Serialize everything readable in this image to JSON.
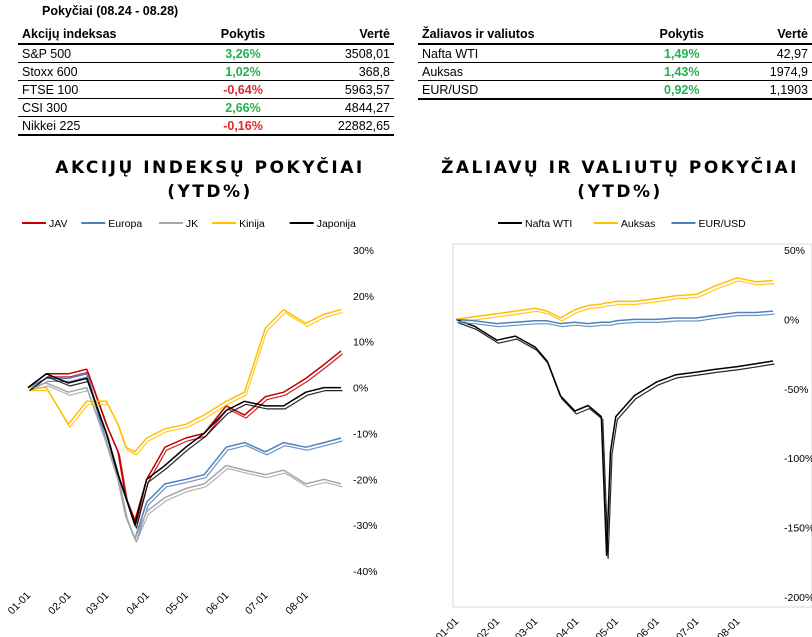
{
  "header": {
    "period_title": "Pokyčiai (08.24 - 08.28)"
  },
  "indices_table": {
    "headers": [
      "Akcijų indeksas",
      "Pokytis",
      "Vertė"
    ],
    "rows": [
      {
        "name": "S&P 500",
        "change": "3,26%",
        "value": "3508,01",
        "direction": "pos"
      },
      {
        "name": "Stoxx 600",
        "change": "1,02%",
        "value": "368,8",
        "direction": "pos"
      },
      {
        "name": "FTSE 100",
        "change": "-0,64%",
        "value": "5963,57",
        "direction": "neg"
      },
      {
        "name": "CSI 300",
        "change": "2,66%",
        "value": "4844,27",
        "direction": "pos"
      },
      {
        "name": "Nikkei 225",
        "change": "-0,16%",
        "value": "22882,65",
        "direction": "neg"
      }
    ]
  },
  "commodities_table": {
    "headers": [
      "Žaliavos ir valiutos",
      "Pokytis",
      "Vertė"
    ],
    "rows": [
      {
        "name": "Nafta WTI",
        "change": "1,49%",
        "value": "42,97",
        "direction": "pos"
      },
      {
        "name": "Auksas",
        "change": "1,43%",
        "value": "1974,9",
        "direction": "pos"
      },
      {
        "name": "EUR/USD",
        "change": "0,92%",
        "value": "1,1903",
        "direction": "pos"
      }
    ]
  },
  "colors": {
    "positive": "#21b24b",
    "negative": "#e3262b"
  },
  "chart_data": [
    {
      "type": "line",
      "title_lines": [
        "AKCIJŲ INDEKSŲ POKYČIAI",
        "(YTD%)"
      ],
      "x": [
        "01-01",
        "01-15",
        "02-01",
        "02-15",
        "03-01",
        "03-10",
        "03-16",
        "03-23",
        "04-01",
        "04-15",
        "05-01",
        "05-15",
        "06-01",
        "06-15",
        "07-01",
        "07-15",
        "08-01",
        "08-15",
        "08-28"
      ],
      "x_ticks": [
        "01-01",
        "02-01",
        "03-01",
        "04-01",
        "05-01",
        "06-01",
        "07-01",
        "08-01"
      ],
      "y_ticks": [
        "30%",
        "20%",
        "10%",
        "0%",
        "-10%",
        "-20%",
        "-30%",
        "-40%"
      ],
      "ylim": [
        -40,
        30
      ],
      "y_axis_side": "right",
      "legend_position": "top",
      "series": [
        {
          "name": "JAV",
          "color": "#c00000",
          "values": [
            0,
            3,
            3,
            4,
            -8,
            -14,
            -24,
            -29,
            -20,
            -13,
            -11,
            -10,
            -4,
            -6,
            -2,
            -1,
            2,
            5,
            8
          ]
        },
        {
          "name": "Europa",
          "color": "#4f81bd",
          "values": [
            0,
            2,
            2,
            3,
            -12,
            -20,
            -28,
            -33,
            -25,
            -21,
            -20,
            -19,
            -13,
            -12,
            -14,
            -12,
            -13,
            -12,
            -11
          ]
        },
        {
          "name": "JK",
          "color": "#a6a6a6",
          "values": [
            0,
            1,
            -1,
            0,
            -12,
            -20,
            -28,
            -33,
            -27,
            -24,
            -22,
            -21,
            -17,
            -18,
            -19,
            -18,
            -21,
            -20,
            -21
          ]
        },
        {
          "name": "Kinija",
          "color": "#ffc000",
          "values": [
            0,
            0,
            -8,
            -3,
            -3,
            -8,
            -13,
            -14,
            -11,
            -9,
            -8,
            -6,
            -3,
            -1,
            13,
            17,
            14,
            16,
            17
          ]
        },
        {
          "name": "Japonija",
          "color": "#000000",
          "values": [
            0,
            3,
            1,
            2,
            -10,
            -19,
            -24,
            -30,
            -20,
            -17,
            -13,
            -10,
            -5,
            -3,
            -4,
            -4,
            -1,
            0,
            0
          ]
        }
      ]
    },
    {
      "type": "line",
      "title_lines": [
        "ŽALIAVŲ IR VALIUTŲ POKYČIAI",
        "(YTD%)"
      ],
      "x": [
        "01-01",
        "01-15",
        "02-01",
        "02-15",
        "03-01",
        "03-10",
        "03-20",
        "03-31",
        "04-10",
        "04-20",
        "04-24",
        "04-27",
        "05-01",
        "05-15",
        "06-01",
        "06-15",
        "07-01",
        "07-15",
        "08-01",
        "08-15",
        "08-28"
      ],
      "x_ticks": [
        "01-01",
        "02-01",
        "03-01",
        "04-01",
        "05-01",
        "06-01",
        "07-01",
        "08-01"
      ],
      "y_ticks": [
        "50%",
        "0%",
        "-50%",
        "-100%",
        "-150%",
        "-200%"
      ],
      "ylim": [
        -200,
        50
      ],
      "y_axis_side": "right",
      "legend_position": "top",
      "series": [
        {
          "name": "Nafta WTI",
          "color": "#000000",
          "values": [
            0,
            -5,
            -15,
            -12,
            -20,
            -30,
            -55,
            -66,
            -62,
            -70,
            -170,
            -95,
            -70,
            -55,
            -45,
            -40,
            -38,
            -36,
            -34,
            -32,
            -30
          ]
        },
        {
          "name": "Auksas",
          "color": "#ffc000",
          "values": [
            0,
            2,
            4,
            6,
            8,
            6,
            1,
            7,
            10,
            11,
            12,
            12,
            13,
            13,
            15,
            17,
            18,
            24,
            30,
            27,
            28
          ]
        },
        {
          "name": "EUR/USD",
          "color": "#4f81bd",
          "values": [
            0,
            -1,
            -3,
            -2,
            -1,
            -1,
            -3,
            -2,
            -3,
            -2,
            -2,
            -2,
            -1,
            0,
            0,
            1,
            1,
            3,
            5,
            5,
            6
          ]
        }
      ]
    }
  ]
}
